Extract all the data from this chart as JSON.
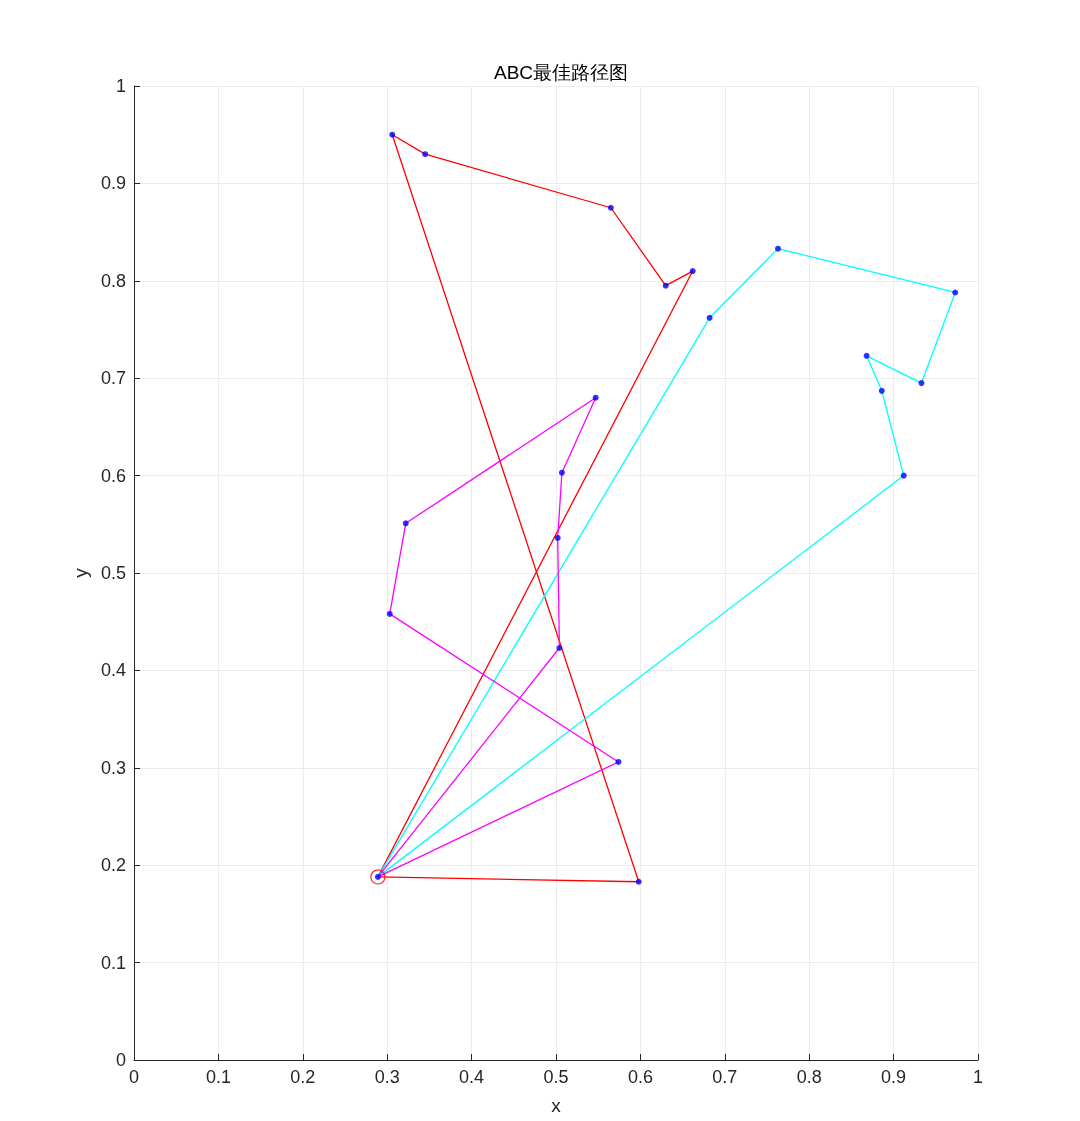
{
  "chart_data": {
    "type": "line",
    "title": "ABC最佳路径图",
    "xlabel": "x",
    "ylabel": "y",
    "xlim": [
      0,
      1
    ],
    "ylim": [
      0,
      1
    ],
    "xticks": [
      0,
      0.1,
      0.2,
      0.3,
      0.4,
      0.5,
      0.6,
      0.7,
      0.8,
      0.9,
      1
    ],
    "yticks": [
      0,
      0.1,
      0.2,
      0.3,
      0.4,
      0.5,
      0.6,
      0.7,
      0.8,
      0.9,
      1
    ],
    "grid": true,
    "marker": "none",
    "line_style": "solid",
    "series": [
      {
        "color": "#ff0000",
        "x": [
          0.289,
          0.662
        ],
        "values": [
          0.188,
          0.81
        ]
      },
      {
        "color": "#ff0000",
        "x": [
          0.662,
          0.63,
          0.565,
          0.345,
          0.306
        ],
        "values": [
          0.81,
          0.795,
          0.875,
          0.93,
          0.95
        ]
      },
      {
        "color": "#ff0000",
        "x": [
          0.306,
          0.598
        ],
        "values": [
          0.95,
          0.183
        ]
      },
      {
        "color": "#ff0000",
        "x": [
          0.598,
          0.289
        ],
        "values": [
          0.183,
          0.188
        ]
      },
      {
        "color": "#00ffff",
        "x": [
          0.289,
          0.682,
          0.763,
          0.973
        ],
        "values": [
          0.188,
          0.762,
          0.833,
          0.788
        ]
      },
      {
        "color": "#00ffff",
        "x": [
          0.973,
          0.933,
          0.868
        ],
        "values": [
          0.788,
          0.695,
          0.723
        ]
      },
      {
        "color": "#00ffff",
        "x": [
          0.868,
          0.886,
          0.912
        ],
        "values": [
          0.723,
          0.687,
          0.6
        ]
      },
      {
        "color": "#00ffff",
        "x": [
          0.912,
          0.289
        ],
        "values": [
          0.6,
          0.188
        ]
      },
      {
        "color": "#ff00ff",
        "x": [
          0.289,
          0.504
        ],
        "values": [
          0.188,
          0.423
        ]
      },
      {
        "color": "#ff00ff",
        "x": [
          0.504,
          0.502
        ],
        "values": [
          0.423,
          0.536
        ]
      },
      {
        "color": "#ff00ff",
        "x": [
          0.502,
          0.507,
          0.547
        ],
        "values": [
          0.536,
          0.603,
          0.68
        ]
      },
      {
        "color": "#ff00ff",
        "x": [
          0.547,
          0.322,
          0.303
        ],
        "values": [
          0.68,
          0.551,
          0.458
        ]
      },
      {
        "color": "#ff00ff",
        "x": [
          0.303,
          0.574
        ],
        "values": [
          0.458,
          0.306
        ]
      },
      {
        "color": "#ff00ff",
        "x": [
          0.574,
          0.289
        ],
        "values": [
          0.306,
          0.188
        ]
      },
      {
        "type": "scatter",
        "color": "#0000ff",
        "marker": "circle",
        "x": [
          0.289,
          0.662,
          0.63,
          0.565,
          0.345,
          0.306,
          0.598,
          0.682,
          0.763,
          0.973,
          0.933,
          0.868,
          0.886,
          0.912,
          0.504,
          0.502,
          0.507,
          0.547,
          0.322,
          0.303,
          0.574
        ],
        "values": [
          0.188,
          0.81,
          0.795,
          0.875,
          0.93,
          0.95,
          0.183,
          0.762,
          0.833,
          0.788,
          0.695,
          0.723,
          0.687,
          0.6,
          0.423,
          0.536,
          0.603,
          0.68,
          0.551,
          0.458,
          0.306
        ]
      },
      {
        "type": "scatter",
        "color": "#ff0000",
        "marker": "circle",
        "x": [
          0.289
        ],
        "values": [
          0.188
        ]
      }
    ]
  }
}
